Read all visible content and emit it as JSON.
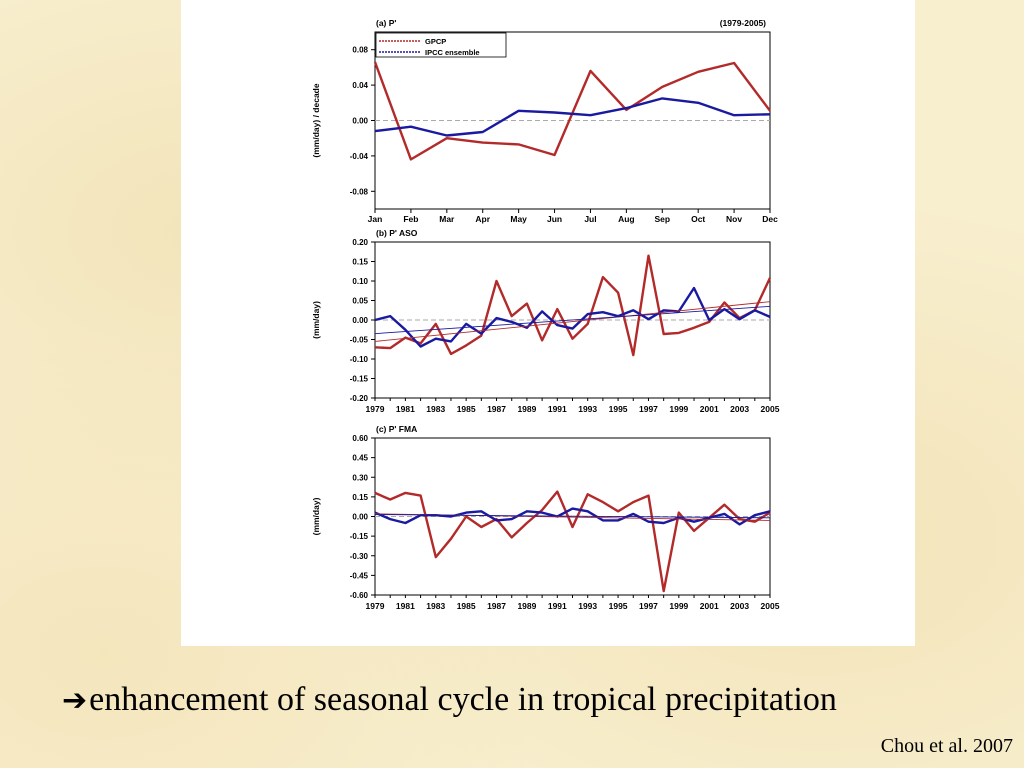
{
  "caption": {
    "arrow_icon": "right-arrow-icon",
    "text": "enhancement of seasonal cycle in tropical precipitation"
  },
  "citation": "Chou et al. 2007",
  "colors": {
    "gpcp": "#b22a2a",
    "ipcc": "#1a1aa0",
    "zero_line": "#aaaaaa",
    "background": "#f8efcf"
  },
  "chart_data": [
    {
      "type": "line",
      "panel_label": "(a)",
      "title": "P'",
      "right_title": "(1979-2005)",
      "xlabel": "",
      "ylabel": "(mm/day) / decade",
      "categories": [
        "Jan",
        "Feb",
        "Mar",
        "Apr",
        "May",
        "Jun",
        "Jul",
        "Aug",
        "Sep",
        "Oct",
        "Nov",
        "Dec"
      ],
      "yticks": [
        "0.08",
        "0.04",
        "0.00",
        "-0.04",
        "-0.08"
      ],
      "ylim": [
        -0.1,
        0.1
      ],
      "legend": "top-left",
      "grid": false,
      "series": [
        {
          "name": "GPCP",
          "color": "#b22a2a",
          "values": [
            0.066,
            -0.044,
            -0.02,
            -0.025,
            -0.027,
            -0.039,
            0.056,
            0.012,
            0.038,
            0.055,
            0.065,
            0.011
          ]
        },
        {
          "name": "IPCC ensemble",
          "color": "#1a1aa0",
          "values": [
            -0.012,
            -0.007,
            -0.017,
            -0.013,
            0.011,
            0.009,
            0.006,
            0.014,
            0.025,
            0.02,
            0.006,
            0.007
          ]
        }
      ]
    },
    {
      "type": "line",
      "panel_label": "(b)",
      "title": "P' ASO",
      "xlabel": "",
      "ylabel": "(mm/day)",
      "x": [
        1979,
        1980,
        1981,
        1982,
        1983,
        1984,
        1985,
        1986,
        1987,
        1988,
        1989,
        1990,
        1991,
        1992,
        1993,
        1994,
        1995,
        1996,
        1997,
        1998,
        1999,
        2000,
        2001,
        2002,
        2003,
        2004,
        2005
      ],
      "xticks": [
        "1979",
        "1981",
        "1983",
        "1985",
        "1987",
        "1989",
        "1991",
        "1993",
        "1995",
        "1997",
        "1999",
        "2001",
        "2003",
        "2005"
      ],
      "yticks": [
        "0.20",
        "0.15",
        "0.10",
        "0.05",
        "0.00",
        "-0.05",
        "-0.10",
        "-0.15",
        "-0.20"
      ],
      "ylim": [
        -0.2,
        0.2
      ],
      "grid": false,
      "series": [
        {
          "name": "GPCP",
          "color": "#b22a2a",
          "values": [
            -0.07,
            -0.072,
            -0.045,
            -0.06,
            -0.01,
            -0.087,
            -0.065,
            -0.04,
            0.1,
            0.01,
            0.042,
            -0.052,
            0.028,
            -0.048,
            -0.01,
            0.11,
            0.07,
            -0.09,
            0.165,
            -0.036,
            -0.033,
            -0.02,
            -0.005,
            0.045,
            0.005,
            0.025,
            0.108
          ]
        },
        {
          "name": "IPCC ensemble",
          "color": "#1a1aa0",
          "values": [
            0.0,
            0.01,
            -0.025,
            -0.068,
            -0.048,
            -0.055,
            -0.01,
            -0.035,
            0.005,
            -0.005,
            -0.02,
            0.022,
            -0.013,
            -0.022,
            0.015,
            0.02,
            0.01,
            0.025,
            0.002,
            0.025,
            0.022,
            0.082,
            0.0,
            0.028,
            0.002,
            0.025,
            0.008
          ]
        },
        {
          "name": "GPCP trend",
          "color": "#b22a2a",
          "values_ends": [
            -0.055,
            0.047
          ]
        },
        {
          "name": "IPCC ensemble trend",
          "color": "#1a1aa0",
          "values_ends": [
            -0.035,
            0.035
          ]
        }
      ]
    },
    {
      "type": "line",
      "panel_label": "(c)",
      "title": "P' FMA",
      "xlabel": "",
      "ylabel": "(mm/day)",
      "x": [
        1979,
        1980,
        1981,
        1982,
        1983,
        1984,
        1985,
        1986,
        1987,
        1988,
        1989,
        1990,
        1991,
        1992,
        1993,
        1994,
        1995,
        1996,
        1997,
        1998,
        1999,
        2000,
        2001,
        2002,
        2003,
        2004,
        2005
      ],
      "xticks": [
        "1979",
        "1981",
        "1983",
        "1985",
        "1987",
        "1989",
        "1991",
        "1993",
        "1995",
        "1997",
        "1999",
        "2001",
        "2003",
        "2005"
      ],
      "yticks": [
        "0.60",
        "0.45",
        "0.30",
        "0.15",
        "0.00",
        "-0.15",
        "-0.30",
        "-0.45",
        "-0.60"
      ],
      "ylim": [
        -0.6,
        0.6
      ],
      "grid": false,
      "series": [
        {
          "name": "GPCP",
          "color": "#b22a2a",
          "values": [
            0.18,
            0.13,
            0.18,
            0.16,
            -0.31,
            -0.17,
            0.0,
            -0.08,
            -0.02,
            -0.16,
            -0.05,
            0.05,
            0.19,
            -0.08,
            0.17,
            0.11,
            0.04,
            0.11,
            0.16,
            -0.57,
            0.03,
            -0.11,
            -0.01,
            0.09,
            -0.02,
            -0.04,
            0.03
          ]
        },
        {
          "name": "IPCC ensemble",
          "color": "#1a1aa0",
          "values": [
            0.03,
            -0.02,
            -0.05,
            0.01,
            0.01,
            0.0,
            0.03,
            0.04,
            -0.03,
            -0.02,
            0.04,
            0.03,
            0.0,
            0.06,
            0.04,
            -0.03,
            -0.03,
            0.02,
            -0.04,
            -0.05,
            -0.01,
            -0.04,
            -0.01,
            0.02,
            -0.06,
            0.01,
            0.04
          ]
        },
        {
          "name": "GPCP trend",
          "color": "#b22a2a",
          "values_ends": [
            0.02,
            -0.03
          ]
        },
        {
          "name": "IPCC ensemble trend",
          "color": "#1a1aa0",
          "values_ends": [
            0.015,
            -0.01
          ]
        }
      ]
    }
  ]
}
